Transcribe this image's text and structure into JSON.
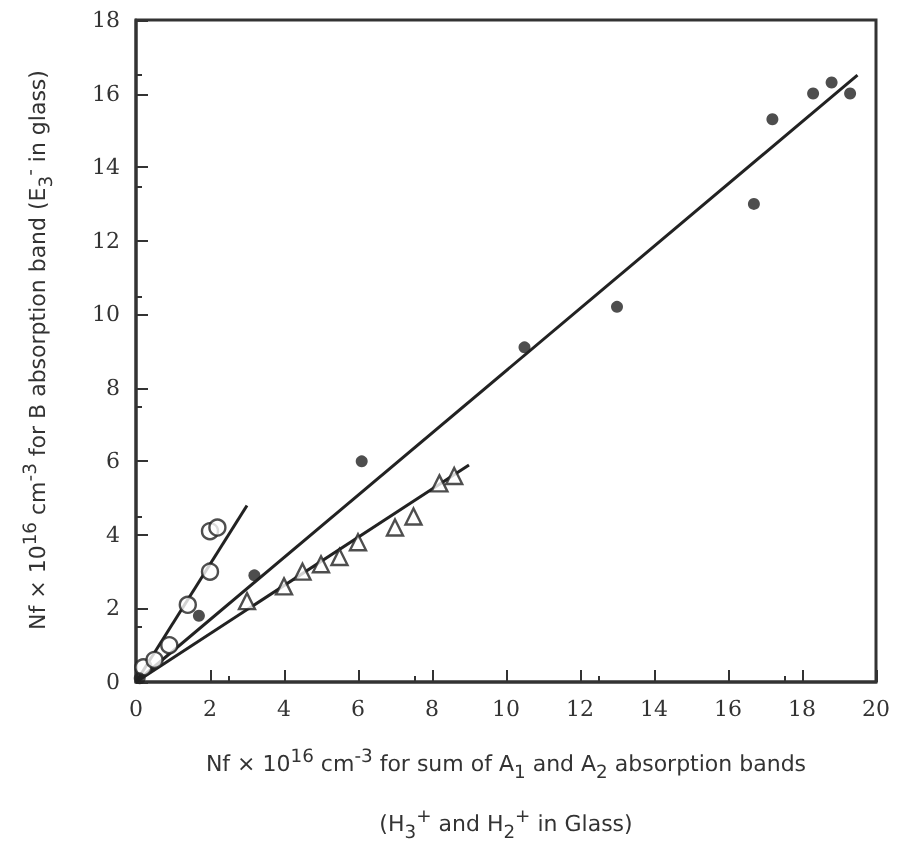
{
  "chart_data": {
    "type": "scatter",
    "xlabel": "Nf × 10$^{16}$ cm$^{-3}$ for sum of A$_{1}$ and A$_{2}$ absorption bands\n(H$_{3}$$^{+}$ and H$_{2}$$^{+}$ in Glass)",
    "ylabel": "Nf × 10$^{16}$ cm$^{-3}$ for B absorption band (E$_{3}$$^{-}$ in glass)",
    "xlim": [
      0,
      20
    ],
    "ylim": [
      0,
      18
    ],
    "xticks": [
      0,
      2,
      4,
      6,
      8,
      10,
      12,
      14,
      16,
      18,
      20
    ],
    "yticks": [
      0,
      2,
      4,
      6,
      8,
      10,
      12,
      14,
      16,
      18
    ],
    "grid": false,
    "series": [
      {
        "marker": "circle",
        "color": "#222222",
        "x": [
          0.1,
          1.7,
          3.2,
          6.1,
          10.5,
          13.0,
          16.7,
          17.2,
          18.3,
          18.8,
          19.3
        ],
        "values": [
          0.1,
          1.8,
          2.9,
          6.0,
          9.1,
          10.2,
          13.0,
          15.3,
          16.0,
          16.3,
          16.0
        ]
      },
      {
        "marker": "circle",
        "color": "#222222",
        "x": [
          0.2,
          0.5,
          0.9,
          1.4,
          2.0,
          2.0,
          2.2
        ],
        "values": [
          0.4,
          0.6,
          1.0,
          2.1,
          3.0,
          4.1,
          4.2
        ]
      },
      {
        "marker": "triangle",
        "color": "#222222",
        "x": [
          3.0,
          4.0,
          4.5,
          5.0,
          5.5,
          6.0,
          7.0,
          7.5,
          8.2,
          8.6
        ],
        "values": [
          2.2,
          2.6,
          3.0,
          3.2,
          3.4,
          3.8,
          4.2,
          4.5,
          5.4,
          5.6
        ]
      },
      {
        "type": "line",
        "color": "#222222",
        "line_style": "solid",
        "marker": "none",
        "x": [
          0,
          19.5
        ],
        "values": [
          0,
          16.5
        ]
      },
      {
        "type": "line",
        "color": "#222222",
        "line_style": "solid",
        "marker": "none",
        "x": [
          0,
          3.0
        ],
        "values": [
          0,
          4.8
        ]
      },
      {
        "type": "line",
        "color": "#222222",
        "line_style": "solid",
        "marker": "none",
        "x": [
          0,
          9.0
        ],
        "values": [
          0,
          5.9
        ]
      }
    ]
  }
}
